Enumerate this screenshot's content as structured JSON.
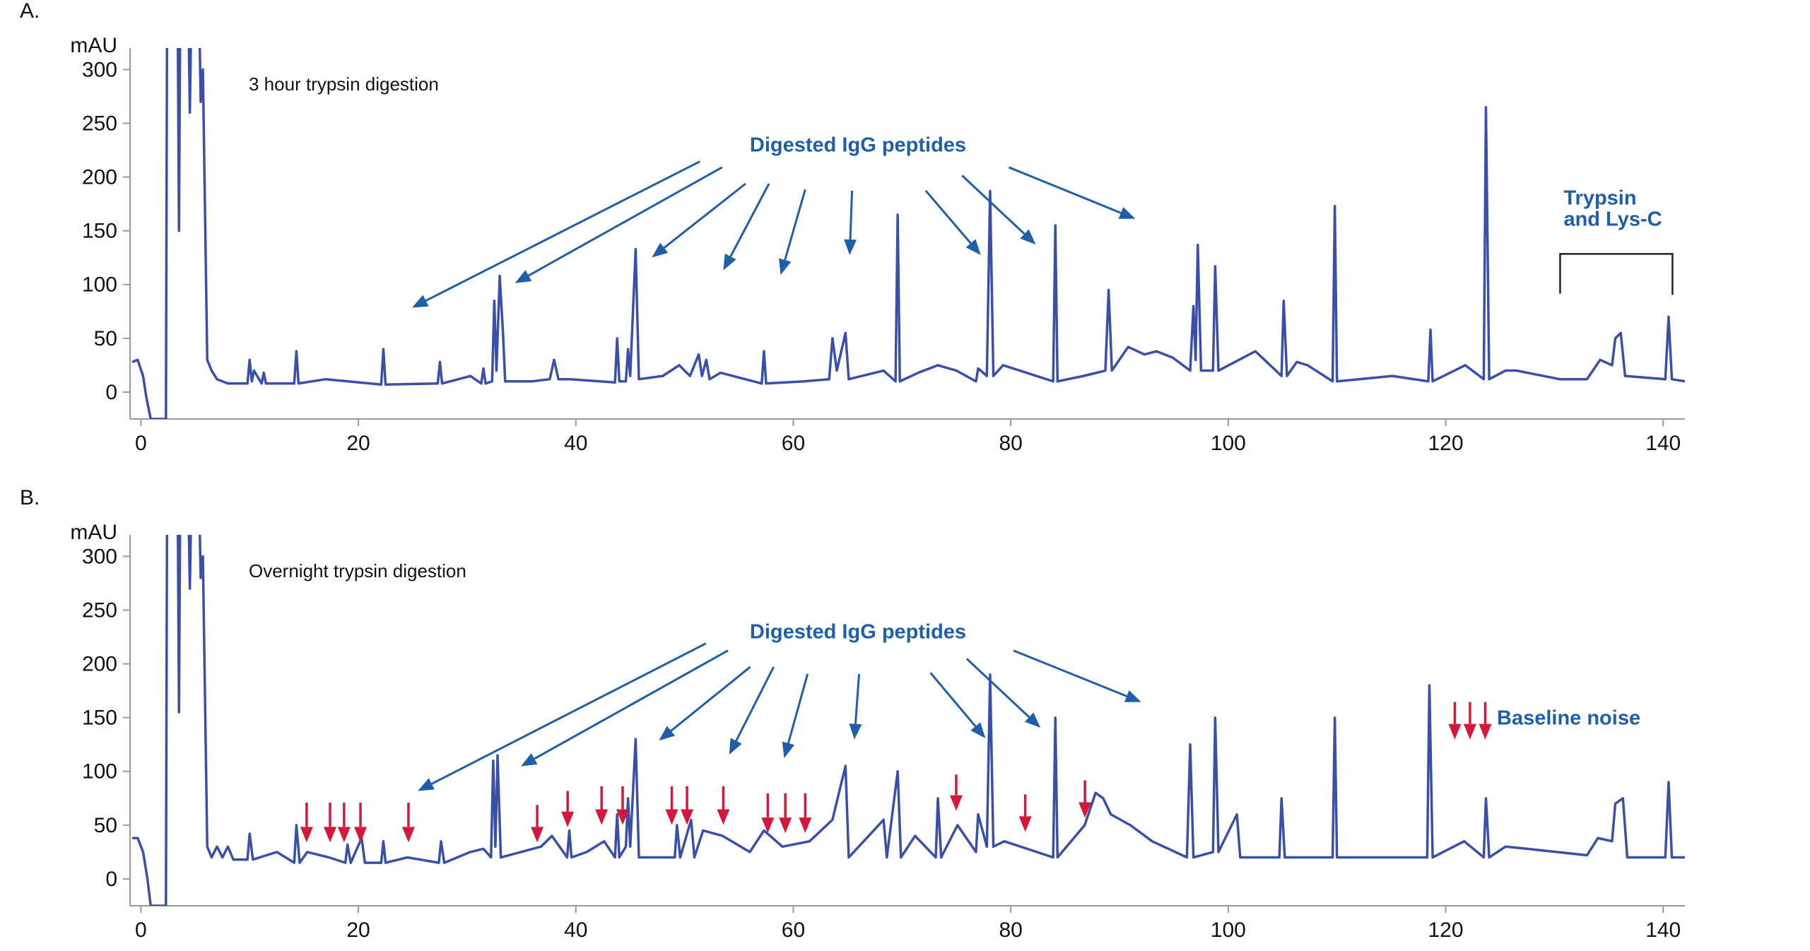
{
  "chart_data": [
    {
      "type": "line",
      "label": "A.",
      "title": "3 hour trypsin digestion",
      "ylabel": "mAU",
      "annotation": "Digested IgG peptides",
      "bracket_label": [
        "Trypsin",
        "and Lys-C"
      ],
      "color": "#3a4fa8",
      "grid": false,
      "xlim": [
        -1,
        142
      ],
      "xticks": [
        0,
        20,
        40,
        60,
        80,
        100,
        120,
        140
      ],
      "ylim": [
        -25,
        320
      ],
      "yticks": [
        0,
        50,
        100,
        150,
        200,
        250,
        300
      ],
      "x": [
        -0.8,
        -0.3,
        0.2,
        0.5,
        0.9,
        2.3,
        2.4,
        3.4,
        3.5,
        3.6,
        4.4,
        4.5,
        4.6,
        5.4,
        5.5,
        5.7,
        6.1,
        6.5,
        7,
        8,
        9.8,
        10,
        10.2,
        10.4,
        11.1,
        11.3,
        11.5,
        14.1,
        14.3,
        14.5,
        17,
        22.1,
        22.3,
        22.5,
        27.3,
        27.5,
        27.7,
        30.3,
        31.3,
        31.5,
        31.7,
        32.3,
        32.5,
        32.7,
        33,
        33.3,
        33.5,
        36,
        37.6,
        38,
        38.4,
        39.5,
        43.6,
        43.8,
        44,
        44.6,
        44.8,
        45,
        45.5,
        45.8,
        48,
        49.5,
        50.5,
        51.3,
        51.6,
        52,
        52.3,
        53.3,
        57.1,
        57.3,
        57.5,
        61,
        63.3,
        63.6,
        64,
        64.8,
        65.1,
        68.3,
        69.4,
        69.6,
        69.8,
        71.5,
        73.3,
        75,
        76.8,
        77,
        77.8,
        78.1,
        78.4,
        79.3,
        83.9,
        84.1,
        84.3,
        86.7,
        88.7,
        89,
        89.3,
        90.8,
        92.3,
        93.4,
        94.9,
        96.5,
        96.8,
        97,
        97.2,
        97.5,
        98.6,
        98.8,
        99.1,
        102.5,
        104.9,
        105.1,
        105.4,
        106.3,
        107.3,
        109.6,
        109.8,
        110,
        115.1,
        118.4,
        118.6,
        118.8,
        121.8,
        123.5,
        123.7,
        124,
        125.5,
        126.5,
        127.5,
        130.5,
        133,
        134.2,
        135.3,
        135.6,
        136.1,
        136.5,
        140.2,
        140.5,
        140.8,
        142
      ],
      "values": [
        28,
        30,
        15,
        -5,
        -25,
        -25,
        330,
        330,
        150,
        330,
        330,
        260,
        330,
        330,
        270,
        300,
        30,
        20,
        12,
        8,
        8,
        30,
        10,
        20,
        8,
        18,
        8,
        8,
        38,
        8,
        12,
        7,
        40,
        7,
        8,
        28,
        8,
        15,
        8,
        22,
        8,
        10,
        85,
        20,
        108,
        55,
        10,
        10,
        12,
        30,
        12,
        12,
        9,
        50,
        10,
        10,
        40,
        15,
        133,
        12,
        15,
        25,
        15,
        35,
        15,
        30,
        12,
        18,
        8,
        38,
        8,
        10,
        12,
        50,
        20,
        55,
        12,
        20,
        10,
        165,
        10,
        18,
        25,
        20,
        10,
        22,
        15,
        187,
        15,
        25,
        10,
        155,
        10,
        15,
        20,
        95,
        20,
        42,
        35,
        38,
        32,
        20,
        80,
        30,
        137,
        20,
        20,
        117,
        20,
        38,
        15,
        85,
        15,
        28,
        25,
        10,
        173,
        10,
        15,
        10,
        58,
        10,
        25,
        12,
        265,
        12,
        20,
        20,
        18,
        12,
        12,
        30,
        25,
        50,
        55,
        15,
        12,
        70,
        12,
        10
      ]
    },
    {
      "type": "line",
      "label": "B.",
      "title": "Overnight trypsin digestion",
      "ylabel": "mAU",
      "annotation": "Digested IgG peptides",
      "noise_label": "Baseline noise",
      "color": "#3a4fa8",
      "grid": false,
      "xlim": [
        -1,
        142
      ],
      "xticks": [
        0,
        20,
        40,
        60,
        80,
        100,
        120,
        140
      ],
      "ylim": [
        -25,
        320
      ],
      "yticks": [
        0,
        50,
        100,
        150,
        200,
        250,
        300
      ],
      "x": [
        -0.8,
        -0.3,
        0.2,
        0.6,
        0.9,
        2.3,
        2.4,
        3.4,
        3.5,
        3.6,
        4.4,
        4.5,
        4.6,
        5.4,
        5.5,
        5.7,
        6.1,
        6.5,
        7,
        7.5,
        8,
        8.5,
        9.8,
        10,
        10.3,
        12.5,
        14.1,
        14.3,
        14.6,
        15.3,
        17.3,
        18.8,
        19,
        19.3,
        20.3,
        20.6,
        22.1,
        22.3,
        22.5,
        24.5,
        27.4,
        27.6,
        27.9,
        30.3,
        31.5,
        32.2,
        32.4,
        32.6,
        32.8,
        33.1,
        36.8,
        37.8,
        39.2,
        39.4,
        39.6,
        41,
        42.6,
        43.6,
        43.8,
        44,
        44.6,
        44.8,
        45,
        45.5,
        45.8,
        49.1,
        49.3,
        49.6,
        50.6,
        50.9,
        51.7,
        53.5,
        56,
        57.3,
        59,
        61.5,
        63.6,
        64.8,
        65.1,
        68.3,
        68.6,
        69.6,
        69.9,
        71.2,
        73.1,
        73.3,
        73.6,
        75.1,
        76.8,
        77,
        77.8,
        78.1,
        78.4,
        79.4,
        83.9,
        84.1,
        84.3,
        86.8,
        87.8,
        88.5,
        89.2,
        91,
        93,
        96.2,
        96.5,
        96.8,
        98.6,
        98.8,
        99.1,
        100.8,
        101.1,
        104.7,
        104.9,
        105.2,
        109.6,
        109.8,
        110,
        118.3,
        118.5,
        118.8,
        121.7,
        123.5,
        123.7,
        124,
        125.5,
        127.5,
        133,
        134,
        135.3,
        135.6,
        136.3,
        136.7,
        140.2,
        140.5,
        140.8,
        142
      ],
      "values": [
        38,
        38,
        25,
        0,
        -25,
        -25,
        330,
        330,
        155,
        330,
        330,
        270,
        330,
        330,
        280,
        300,
        30,
        20,
        30,
        20,
        30,
        18,
        18,
        42,
        18,
        25,
        15,
        50,
        15,
        25,
        20,
        15,
        32,
        15,
        38,
        15,
        15,
        35,
        15,
        20,
        15,
        35,
        15,
        25,
        28,
        20,
        110,
        30,
        115,
        20,
        30,
        40,
        20,
        45,
        20,
        25,
        35,
        20,
        60,
        20,
        30,
        75,
        30,
        130,
        20,
        20,
        50,
        20,
        55,
        20,
        45,
        40,
        25,
        45,
        30,
        35,
        55,
        105,
        20,
        55,
        20,
        100,
        20,
        40,
        20,
        75,
        20,
        50,
        25,
        60,
        30,
        190,
        30,
        35,
        20,
        150,
        20,
        50,
        80,
        75,
        60,
        50,
        35,
        20,
        125,
        20,
        25,
        150,
        25,
        60,
        20,
        20,
        75,
        20,
        20,
        150,
        20,
        20,
        180,
        20,
        35,
        20,
        75,
        20,
        30,
        28,
        22,
        38,
        35,
        70,
        75,
        20,
        20,
        90,
        20,
        20
      ]
    }
  ]
}
